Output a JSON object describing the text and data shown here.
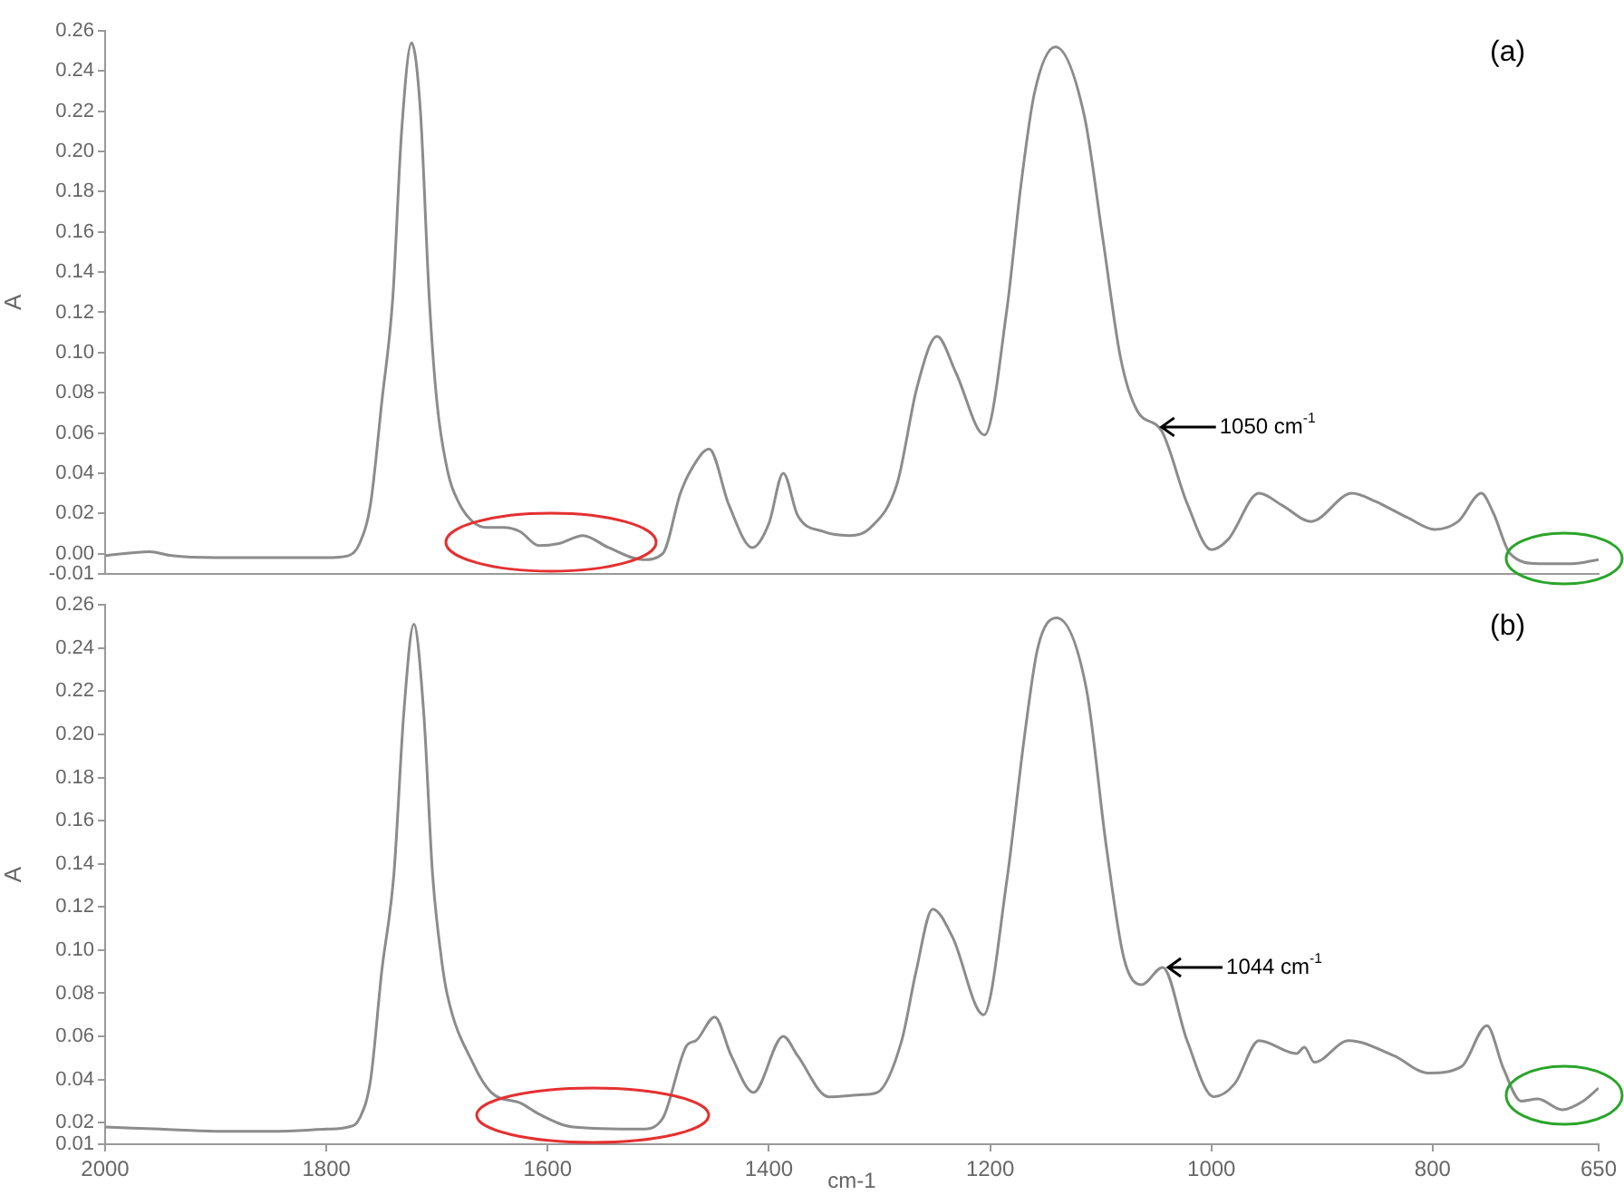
{
  "chart_data": [
    {
      "type": "line",
      "ylabel": "A",
      "xlim": [
        2000,
        650
      ],
      "ylim": [
        -0.01,
        0.26
      ],
      "tick_labels": "y",
      "grid": false,
      "marker": "none",
      "yticks": [
        {
          "value": -0.01,
          "label": "-0.01"
        },
        {
          "value": 0,
          "label": "0.00"
        },
        {
          "value": 0.02,
          "label": "0.02"
        },
        {
          "value": 0.04,
          "label": "0.04"
        },
        {
          "value": 0.06,
          "label": "0.06"
        },
        {
          "value": 0.08,
          "label": "0.08"
        },
        {
          "value": 0.1,
          "label": "0.10"
        },
        {
          "value": 0.12,
          "label": "0.12"
        },
        {
          "value": 0.14,
          "label": "0.14"
        },
        {
          "value": 0.16,
          "label": "0.16"
        },
        {
          "value": 0.18,
          "label": "0.18"
        },
        {
          "value": 0.2,
          "label": "0.20"
        },
        {
          "value": 0.22,
          "label": "0.22"
        },
        {
          "value": 0.24,
          "label": "0.24"
        },
        {
          "value": 0.26,
          "label": "0.26"
        }
      ],
      "annotations": [
        "(a)",
        {
          "text": "1050 cm$^{-1}$",
          "x": 1050,
          "y": 0.063
        }
      ],
      "series": [
        {
          "color": "#8c8c8c",
          "x": [
            2000,
            1960,
            1940,
            1900,
            1850,
            1800,
            1780,
            1770,
            1760,
            1750,
            1740,
            1732,
            1723,
            1715,
            1707,
            1700,
            1690,
            1680,
            1668,
            1655,
            1640,
            1625,
            1608,
            1590,
            1568,
            1545,
            1514,
            1496,
            1480,
            1470,
            1454,
            1436,
            1415,
            1400,
            1387,
            1374,
            1351,
            1327,
            1308,
            1284,
            1266,
            1248,
            1231,
            1205,
            1185,
            1172,
            1160,
            1141,
            1115,
            1098,
            1082,
            1067,
            1045,
            1022,
            1000,
            985,
            957,
            936,
            910,
            873,
            852,
            823,
            798,
            777,
            756,
            745,
            730,
            704,
            674,
            650
          ],
          "values": [
            -0.001,
            0.001,
            -0.001,
            -0.002,
            -0.002,
            -0.002,
            -0.001,
            0.005,
            0.025,
            0.075,
            0.127,
            0.21,
            0.254,
            0.22,
            0.127,
            0.075,
            0.04,
            0.025,
            0.016,
            0.013,
            0.013,
            0.011,
            0.004,
            0.005,
            0.009,
            0.003,
            -0.003,
            0.0,
            0.03,
            0.042,
            0.052,
            0.024,
            0.003,
            0.015,
            0.04,
            0.019,
            0.011,
            0.009,
            0.013,
            0.035,
            0.083,
            0.108,
            0.09,
            0.059,
            0.121,
            0.184,
            0.229,
            0.252,
            0.218,
            0.156,
            0.097,
            0.071,
            0.061,
            0.025,
            0.002,
            0.007,
            0.03,
            0.024,
            0.016,
            0.03,
            0.026,
            0.018,
            0.012,
            0.016,
            0.03,
            0.02,
            0.0,
            -0.005,
            -0.005,
            -0.003
          ]
        }
      ]
    },
    {
      "type": "line",
      "ylabel": "A",
      "xlabel": "cm-1",
      "xlim": [
        2000,
        650
      ],
      "ylim": [
        0.01,
        0.26
      ],
      "grid": false,
      "marker": "none",
      "xticks": [
        2000,
        1800,
        1600,
        1400,
        1200,
        1000,
        800,
        650
      ],
      "yticks": [
        {
          "value": 0.01,
          "label": "0.01"
        },
        {
          "value": 0.02,
          "label": "0.02"
        },
        {
          "value": 0.04,
          "label": "0.04"
        },
        {
          "value": 0.06,
          "label": "0.06"
        },
        {
          "value": 0.08,
          "label": "0.08"
        },
        {
          "value": 0.1,
          "label": "0.10"
        },
        {
          "value": 0.12,
          "label": "0.12"
        },
        {
          "value": 0.14,
          "label": "0.14"
        },
        {
          "value": 0.16,
          "label": "0.16"
        },
        {
          "value": 0.18,
          "label": "0.18"
        },
        {
          "value": 0.2,
          "label": "0.20"
        },
        {
          "value": 0.22,
          "label": "0.22"
        },
        {
          "value": 0.24,
          "label": "0.24"
        },
        {
          "value": 0.26,
          "label": "0.26"
        }
      ],
      "annotations": [
        "(b)",
        {
          "text": "1044 cm$^{-1}$",
          "x": 1044,
          "y": 0.092
        }
      ],
      "series": [
        {
          "color": "#8c8c8c",
          "x": [
            2000,
            1950,
            1900,
            1850,
            1800,
            1780,
            1770,
            1760,
            1750,
            1739,
            1730,
            1721,
            1712,
            1704,
            1697,
            1691,
            1667,
            1651,
            1624,
            1608,
            1577,
            1515,
            1496,
            1474,
            1466,
            1449,
            1434,
            1414,
            1387,
            1374,
            1346,
            1315,
            1302,
            1280,
            1267,
            1252,
            1234,
            1206,
            1185,
            1169,
            1157,
            1140,
            1113,
            1095,
            1079,
            1063,
            1044,
            1022,
            998,
            979,
            957,
            923,
            916,
            907,
            876,
            835,
            804,
            774,
            751,
            736,
            720,
            705,
            683,
            664,
            650
          ],
          "values": [
            0.018,
            0.017,
            0.016,
            0.016,
            0.017,
            0.018,
            0.022,
            0.04,
            0.09,
            0.135,
            0.21,
            0.251,
            0.21,
            0.135,
            0.1,
            0.08,
            0.047,
            0.034,
            0.029,
            0.024,
            0.018,
            0.017,
            0.022,
            0.056,
            0.058,
            0.069,
            0.051,
            0.034,
            0.06,
            0.051,
            0.032,
            0.033,
            0.034,
            0.058,
            0.09,
            0.119,
            0.106,
            0.07,
            0.132,
            0.199,
            0.24,
            0.254,
            0.221,
            0.148,
            0.096,
            0.084,
            0.092,
            0.058,
            0.032,
            0.038,
            0.058,
            0.052,
            0.055,
            0.048,
            0.058,
            0.051,
            0.043,
            0.046,
            0.065,
            0.045,
            0.03,
            0.031,
            0.026,
            0.03,
            0.036
          ]
        }
      ]
    }
  ]
}
